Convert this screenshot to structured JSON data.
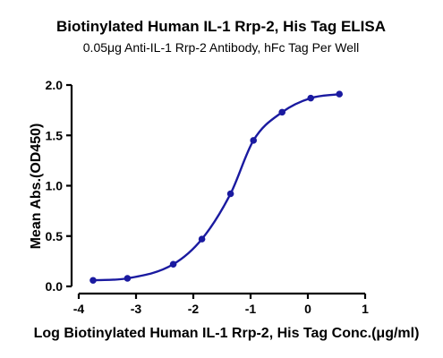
{
  "chart_data": {
    "type": "scatter",
    "title": "Biotinylated Human IL-1 Rrp-2, His Tag ELISA",
    "subtitle": "0.05μg Anti-IL-1 Rrp-2 Antibody, hFc Tag Per Well",
    "xlabel": "Log Biotinylated Human IL-1 Rrp-2, His Tag Conc.(μg/ml)",
    "ylabel": "Mean Abs.(OD450)",
    "xlim": [
      -4,
      1
    ],
    "ylim": [
      0.0,
      2.0
    ],
    "xticks": [
      "-4",
      "-3",
      "-2",
      "-1",
      "0",
      "1"
    ],
    "yticks": [
      "0.0",
      "0.5",
      "1.0",
      "1.5",
      "2.0"
    ],
    "grid": false,
    "fit": "sigmoidal curve",
    "series": [
      {
        "x": [
          -3.75,
          -3.15,
          -2.35,
          -1.85,
          -1.35,
          -0.95,
          -0.45,
          0.05,
          0.55
        ],
        "y": [
          0.06,
          0.08,
          0.22,
          0.47,
          0.92,
          1.45,
          1.73,
          1.87,
          1.91
        ],
        "color": "#1a1aa0"
      }
    ]
  }
}
